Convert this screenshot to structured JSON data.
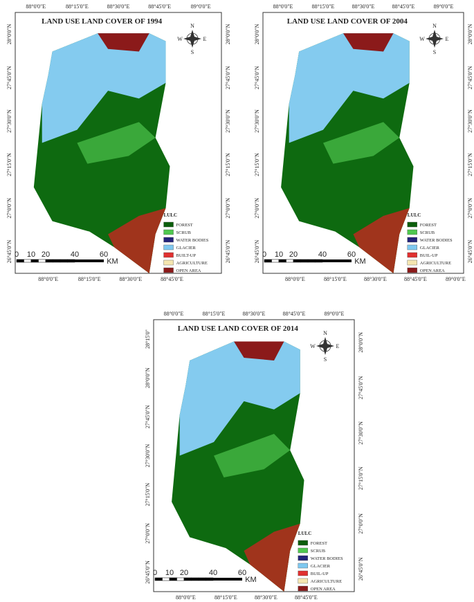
{
  "panels": [
    {
      "title": "LAND USE LAND COVER OF 1994",
      "compass": {
        "n": "N",
        "e": "E",
        "s": "S",
        "w": "W"
      },
      "top_labels": [
        "88°0'0\"E",
        "88°15'0\"E",
        "88°30'0\"E",
        "88°45'0\"E",
        "89°0'0\"E"
      ],
      "bottom_labels": [
        "88°0'0\"E",
        "88°15'0\"E",
        "88°30'0\"E",
        "88°45'0\"E"
      ],
      "left_labels": [
        "28°0'0\"N",
        "27°45'0\"N",
        "27°30'0\"N",
        "27°15'0\"N",
        "27°0'0\"N",
        "26°45'0\"N"
      ],
      "right_labels": [
        "28°0'0\"N",
        "27°45'0\"N",
        "27°30'0\"N",
        "27°15'0\"N",
        "27°0'0\"N",
        "26°45'0\"N"
      ],
      "legend": {
        "title": "LULC",
        "items": [
          {
            "label": "FOREST",
            "color": "#0b5e0b"
          },
          {
            "label": "SCRUB",
            "color": "#4fc84f"
          },
          {
            "label": "WATER BODIES",
            "color": "#23237a"
          },
          {
            "label": "GLACIER",
            "color": "#7ec8f0"
          },
          {
            "label": "BUILT-UP",
            "color": "#e03030"
          },
          {
            "label": "AGRICULTURE",
            "color": "#f5e6b0"
          },
          {
            "label": "OPEN AREA",
            "color": "#8b1a1a"
          }
        ]
      },
      "scale": {
        "labels": [
          "0",
          "10",
          "20",
          "40",
          "60"
        ],
        "unit": "KM"
      }
    },
    {
      "title": "LAND USE LAND COVER OF 2004",
      "compass": {
        "n": "N",
        "e": "E",
        "s": "S",
        "w": "W"
      },
      "top_labels": [
        "88°0'0\"E",
        "88°15'0\"E",
        "88°30'0\"E",
        "88°45'0\"E",
        "89°0'0\"E"
      ],
      "bottom_labels": [
        "88°0'0\"E",
        "88°15'0\"E",
        "88°30'0\"E",
        "88°45'0\"E",
        "89°0'0\"E"
      ],
      "left_labels": [
        "28°0'0\"N",
        "27°45'0\"N",
        "27°30'0\"N",
        "27°15'0\"N",
        "27°0'0\"N",
        "26°45'0\"N"
      ],
      "right_labels": [
        "28°0'0\"N",
        "27°45'0\"N",
        "27°30'0\"N",
        "27°15'0\"N",
        "27°0'0\"N",
        "26°45'0\"N"
      ],
      "legend": {
        "title": "LULC",
        "items": [
          {
            "label": "FOREST",
            "color": "#0b5e0b"
          },
          {
            "label": "SCRUB",
            "color": "#4fc84f"
          },
          {
            "label": "WATER BODIES",
            "color": "#23237a"
          },
          {
            "label": "GLACIER",
            "color": "#7ec8f0"
          },
          {
            "label": "BUIL-UP",
            "color": "#e03030"
          },
          {
            "label": "AGRICULTURE",
            "color": "#f5e6b0"
          },
          {
            "label": "OPEN AREA",
            "color": "#8b1a1a"
          }
        ]
      },
      "scale": {
        "labels": [
          "0",
          "10",
          "20",
          "40",
          "60"
        ],
        "unit": "KM"
      }
    },
    {
      "title": "LAND USE LAND COVER OF 2014",
      "compass": {
        "n": "N",
        "e": "E",
        "s": "S",
        "w": "W"
      },
      "top_labels": [
        "88°0'0\"E",
        "88°15'0\"E",
        "88°30'0\"E",
        "88°45'0\"E",
        "89°0'0\"E"
      ],
      "bottom_labels": [
        "88°0'0\"E",
        "88°15'0\"E",
        "88°30'0\"E",
        "88°45'0\"E"
      ],
      "left_labels": [
        "28°15'0\"",
        "28°0'0\"N",
        "27°45'0\"N",
        "27°30'0\"N",
        "27°15'0\"N",
        "27°0'0\"N",
        "26°45'0\"N"
      ],
      "right_labels": [
        "28°0'0\"N",
        "27°45'0\"N",
        "27°30'0\"N",
        "27°15'0\"N",
        "27°0'0\"N",
        "26°45'0\"N"
      ],
      "legend": {
        "title": "LULC",
        "items": [
          {
            "label": "FOREST",
            "color": "#0b5e0b"
          },
          {
            "label": "SCRUB",
            "color": "#4fc84f"
          },
          {
            "label": "WATER BODIES",
            "color": "#23237a"
          },
          {
            "label": "GLACIER",
            "color": "#7ec8f0"
          },
          {
            "label": "BUIL-UP",
            "color": "#e03030"
          },
          {
            "label": "AGRICULTURE",
            "color": "#f5e6b0"
          },
          {
            "label": "OPEN AREA",
            "color": "#8b1a1a"
          }
        ]
      },
      "scale": {
        "labels": [
          "0",
          "10",
          "20",
          "40",
          "60"
        ],
        "unit": "KM"
      }
    }
  ]
}
